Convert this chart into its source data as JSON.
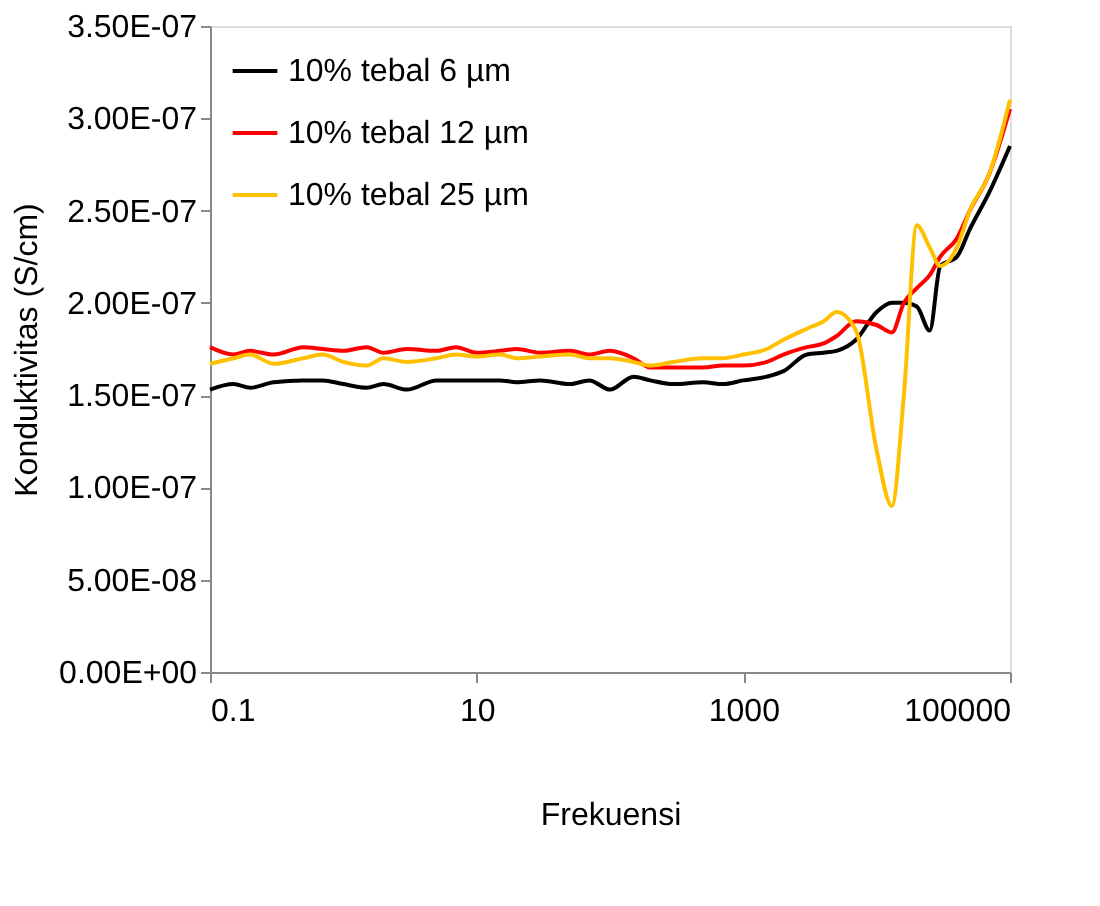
{
  "chart_data": {
    "type": "line",
    "xlabel": "Frekuensi",
    "ylabel": "Konduktivitas (S/cm)",
    "log": "x",
    "xlim": [
      0.1,
      100000
    ],
    "xticks": [
      0.1,
      10,
      1000,
      100000
    ],
    "ylim": [
      0,
      3.5e-07
    ],
    "yticks": [
      {
        "value": 0,
        "label": "0.00E+00"
      },
      {
        "value": 5e-08,
        "label": "5.00E-08"
      },
      {
        "value": 1e-07,
        "label": "1.00E-07"
      },
      {
        "value": 1.5e-07,
        "label": "1.50E-07"
      },
      {
        "value": 2e-07,
        "label": "2.00E-07"
      },
      {
        "value": 2.5e-07,
        "label": "2.50E-07"
      },
      {
        "value": 3e-07,
        "label": "3.00E-07"
      },
      {
        "value": 3.5e-07,
        "label": "3.50E-07"
      }
    ],
    "grid": false,
    "legend": "top left",
    "marker": "none",
    "line_style": "solid",
    "x": [
      0.1,
      0.15,
      0.2,
      0.3,
      0.5,
      0.7,
      1,
      1.5,
      2,
      3,
      5,
      7,
      10,
      15,
      20,
      30,
      50,
      70,
      100,
      150,
      200,
      300,
      500,
      700,
      1000,
      1500,
      2000,
      3000,
      4000,
      5000,
      7000,
      10000,
      13000,
      16000,
      20000,
      25000,
      30000,
      40000,
      50000,
      70000,
      100000
    ],
    "series": [
      {
        "name": "10% tebal 6 µm",
        "color": "#000000",
        "values": [
          1.53e-07,
          1.56e-07,
          1.54e-07,
          1.57e-07,
          1.58e-07,
          1.58e-07,
          1.56e-07,
          1.54e-07,
          1.56e-07,
          1.53e-07,
          1.58e-07,
          1.58e-07,
          1.58e-07,
          1.58e-07,
          1.57e-07,
          1.58e-07,
          1.56e-07,
          1.58e-07,
          1.53e-07,
          1.6e-07,
          1.58e-07,
          1.56e-07,
          1.57e-07,
          1.56e-07,
          1.58e-07,
          1.6e-07,
          1.63e-07,
          1.72e-07,
          1.73e-07,
          1.74e-07,
          1.8e-07,
          1.95e-07,
          2e-07,
          2e-07,
          1.98e-07,
          1.85e-07,
          2.2e-07,
          2.25e-07,
          2.4e-07,
          2.6e-07,
          2.85e-07
        ]
      },
      {
        "name": "10% tebal 12 µm",
        "color": "#ff0000",
        "values": [
          1.76e-07,
          1.72e-07,
          1.74e-07,
          1.72e-07,
          1.76e-07,
          1.75e-07,
          1.74e-07,
          1.76e-07,
          1.73e-07,
          1.75e-07,
          1.74e-07,
          1.76e-07,
          1.73e-07,
          1.74e-07,
          1.75e-07,
          1.73e-07,
          1.74e-07,
          1.72e-07,
          1.74e-07,
          1.7e-07,
          1.65e-07,
          1.65e-07,
          1.65e-07,
          1.66e-07,
          1.66e-07,
          1.68e-07,
          1.72e-07,
          1.76e-07,
          1.78e-07,
          1.82e-07,
          1.9e-07,
          1.88e-07,
          1.84e-07,
          2e-07,
          2.08e-07,
          2.15e-07,
          2.25e-07,
          2.35e-07,
          2.5e-07,
          2.7e-07,
          3.05e-07
        ]
      },
      {
        "name": "10% tebal 25 µm",
        "color": "#ffc000",
        "values": [
          1.67e-07,
          1.7e-07,
          1.72e-07,
          1.67e-07,
          1.7e-07,
          1.72e-07,
          1.68e-07,
          1.66e-07,
          1.7e-07,
          1.68e-07,
          1.7e-07,
          1.72e-07,
          1.71e-07,
          1.72e-07,
          1.7e-07,
          1.71e-07,
          1.72e-07,
          1.7e-07,
          1.7e-07,
          1.68e-07,
          1.66e-07,
          1.68e-07,
          1.7e-07,
          1.7e-07,
          1.72e-07,
          1.75e-07,
          1.8e-07,
          1.86e-07,
          1.9e-07,
          1.95e-07,
          1.85e-07,
          1.2e-07,
          9e-08,
          1.5e-07,
          2.42e-07,
          2.3e-07,
          2.2e-07,
          2.3e-07,
          2.5e-07,
          2.7e-07,
          3.1e-07
        ]
      }
    ]
  }
}
